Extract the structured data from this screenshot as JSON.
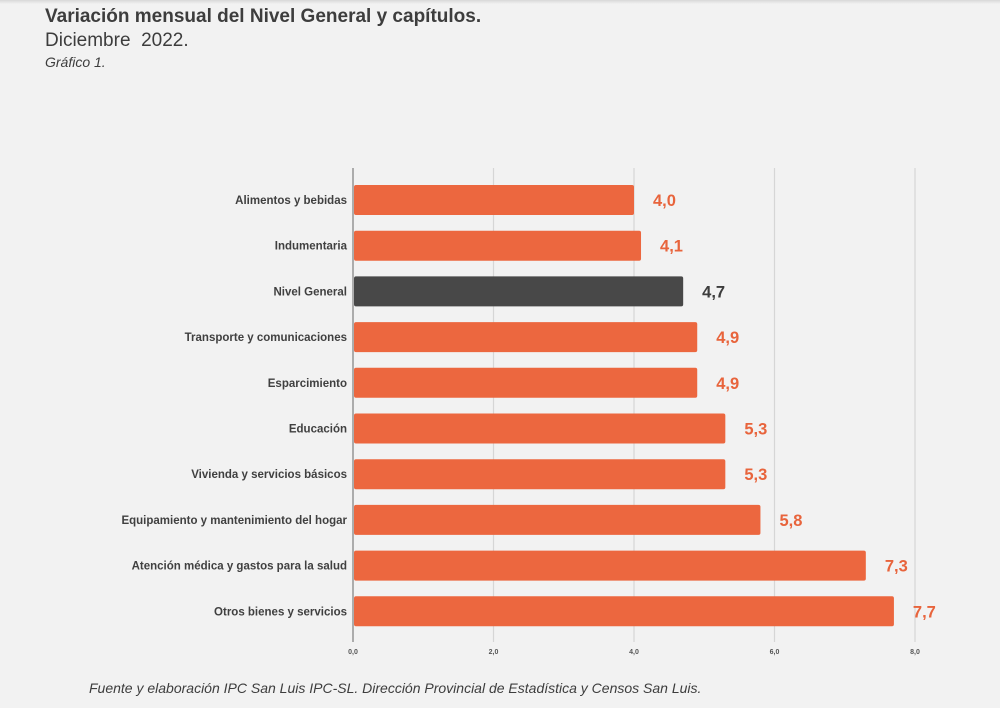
{
  "header": {
    "title": "Variación mensual del Nivel General y capítulos.",
    "subtitle": "Diciembre  2022.",
    "caption": "Gráfico 1."
  },
  "footer": {
    "source": "Fuente y elaboración IPC San Luis IPC-SL. Dirección Provincial de Estadística y Censos San Luis."
  },
  "colors": {
    "bar": "#ec673f",
    "highlight_bar": "#484848",
    "value_label": "#e8643c",
    "highlight_value_label": "#3d3d3d",
    "grid": "#d6d6d6",
    "axis": "#9a9a9a"
  },
  "chart_data": {
    "type": "bar",
    "orientation": "horizontal",
    "title": "Variación mensual del Nivel General y capítulos.",
    "subtitle": "Diciembre 2022.",
    "xlabel": "",
    "ylabel": "",
    "xlim": [
      0,
      8
    ],
    "x_ticks": [
      "0,0",
      "2,0",
      "4,0",
      "6,0",
      "8,0"
    ],
    "x_tick_values": [
      0,
      2,
      4,
      6,
      8
    ],
    "grid": true,
    "legend": "none",
    "categories": [
      "Alimentos y bebidas",
      "Indumentaria",
      "Nivel General",
      "Transporte y comunicaciones",
      "Esparcimiento",
      "Educación",
      "Vivienda y servicios básicos",
      "Equipamiento y mantenimiento del hogar",
      "Atención médica y gastos para la salud",
      "Otros bienes y servicios"
    ],
    "values": [
      4.0,
      4.1,
      4.7,
      4.9,
      4.9,
      5.3,
      5.3,
      5.8,
      7.3,
      7.7
    ],
    "value_labels": [
      "4,0",
      "4,1",
      "4,7",
      "4,9",
      "4,9",
      "5,3",
      "5,3",
      "5,8",
      "7,3",
      "7,7"
    ],
    "highlighted_category": "Nivel General"
  }
}
